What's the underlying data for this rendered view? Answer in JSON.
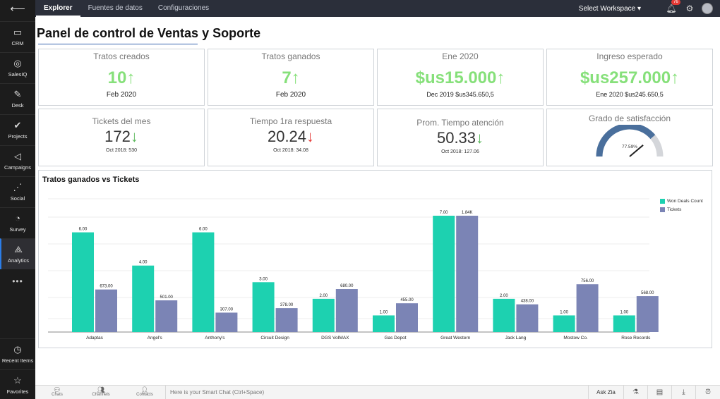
{
  "sidebar": {
    "back_icon": "arrow-left-icon",
    "items": [
      {
        "label": "CRM",
        "icon": "crm-icon"
      },
      {
        "label": "SalesIQ",
        "icon": "salesiq-icon"
      },
      {
        "label": "Desk",
        "icon": "desk-icon"
      },
      {
        "label": "Projects",
        "icon": "check-icon"
      },
      {
        "label": "Campaigns",
        "icon": "megaphone-icon"
      },
      {
        "label": "Social",
        "icon": "share-icon"
      },
      {
        "label": "Survey",
        "icon": "survey-icon"
      },
      {
        "label": "Analytics",
        "icon": "analytics-icon",
        "active": true
      }
    ],
    "more": "•••",
    "bottom_items": [
      {
        "label": "Recent Items",
        "icon": "clock-icon"
      },
      {
        "label": "Favorites",
        "icon": "star-icon"
      }
    ]
  },
  "topbar": {
    "tabs": [
      "Explorer",
      "Fuentes de datos",
      "Configuraciones"
    ],
    "active_tab": "Explorer",
    "workspace": "Select Workspace ▾",
    "notification_count": "76"
  },
  "page": {
    "title": "Panel de control de Ventas y Soporte"
  },
  "kpi_row1": [
    {
      "title": "Tratos creados",
      "value": "10",
      "arrow": "↑",
      "sub": "Feb 2020"
    },
    {
      "title": "Tratos ganados",
      "value": "7",
      "arrow": "↑",
      "sub": "Feb 2020"
    },
    {
      "title": "Ene 2020",
      "value": "$us15.000",
      "arrow": "↑",
      "sub": "Dec 2019 $us345.650,5"
    },
    {
      "title": "Ingreso esperado",
      "value": "$us257.000",
      "arrow": "↑",
      "sub": "Ene 2020 $us245.650,5"
    }
  ],
  "kpi_row2": [
    {
      "title": "Tickets del mes",
      "value": "172",
      "arrow": "↓",
      "sub": "Oct 2018: 530"
    },
    {
      "title": "Tiempo 1ra respuesta",
      "value": "20.24",
      "arrow": "↓",
      "sub": "Oct 2018: 34.08"
    },
    {
      "title": "Prom. Tiempo atención",
      "value": "50.33",
      "arrow": "↓",
      "sub": "Oct 2018: 127.06"
    },
    {
      "title": "Grado de satisfacción",
      "gauge_label": "77.59%",
      "gauge_value": 77.59
    }
  ],
  "colors": {
    "won": "#1dd1b0",
    "tickets": "#7b84b5",
    "kpi_green": "#86e07a",
    "down_red": "#e53935",
    "down_green": "#5cb85c"
  },
  "chart_data": {
    "type": "bar",
    "title": "Tratos ganados vs Tickets",
    "categories": [
      "Adaptas",
      "Angel's",
      "Anthony's",
      "Circuit Design",
      "DGS VoIMAX",
      "Gas Depot",
      "Great Western",
      "Jack Lang",
      "Mostow Co.",
      "Rose Records"
    ],
    "series": [
      {
        "name": "Won Deals Count",
        "values": [
          6,
          4,
          6,
          3,
          2,
          1,
          7,
          2,
          1,
          1
        ],
        "labels": [
          "6.00",
          "4.00",
          "6.00",
          "3.00",
          "2.00",
          "1.00",
          "7.00",
          "2.00",
          "1.00",
          "1.00"
        ]
      },
      {
        "name": "Tickets",
        "values": [
          673,
          501,
          307,
          378,
          680,
          455,
          1840,
          438,
          756,
          568
        ],
        "labels": [
          "673.00",
          "501.00",
          "307.00",
          "378.00",
          "680.00",
          "455.00",
          "1.84K",
          "438.00",
          "756.00",
          "568.00"
        ]
      }
    ],
    "legend": "right",
    "grid": true
  },
  "bottombar": {
    "items": [
      {
        "label": "Chats",
        "icon": "chat-icon"
      },
      {
        "label": "Channels",
        "icon": "channels-icon"
      },
      {
        "label": "Contacts",
        "icon": "contacts-icon"
      }
    ],
    "smart_chat": "Here is your Smart Chat (Ctrl+Space)",
    "ask_zia": "Ask Zia"
  }
}
